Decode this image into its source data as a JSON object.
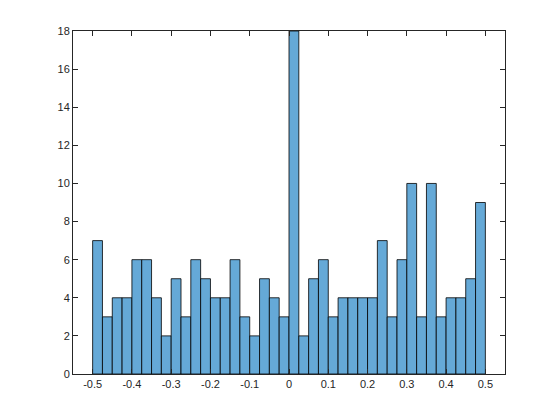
{
  "chart_data": {
    "type": "histogram",
    "bins": [
      -0.5,
      -0.475,
      -0.45,
      -0.425,
      -0.4,
      -0.375,
      -0.35,
      -0.325,
      -0.3,
      -0.275,
      -0.25,
      -0.225,
      -0.2,
      -0.175,
      -0.15,
      -0.125,
      -0.1,
      -0.075,
      -0.05,
      -0.025,
      0,
      0.025,
      0.05,
      0.075,
      0.1,
      0.125,
      0.15,
      0.175,
      0.2,
      0.225,
      0.25,
      0.275,
      0.3,
      0.325,
      0.35,
      0.375,
      0.4,
      0.425,
      0.45,
      0.475,
      0.5
    ],
    "values": [
      7,
      3,
      4,
      4,
      6,
      6,
      4,
      2,
      5,
      3,
      6,
      5,
      4,
      4,
      6,
      3,
      2,
      5,
      4,
      3,
      18,
      2,
      5,
      6,
      3,
      4,
      4,
      4,
      4,
      7,
      3,
      6,
      10,
      3,
      10,
      3,
      4,
      4,
      5,
      9
    ],
    "color": "#65a9d7",
    "xlim": [
      -0.55,
      0.55
    ],
    "xticks": [
      -0.5,
      -0.4,
      -0.3,
      -0.2,
      -0.1,
      0,
      0.1,
      0.2,
      0.3,
      0.4,
      0.5
    ],
    "ylim": [
      0,
      18
    ],
    "yticks": [
      0,
      2,
      4,
      6,
      8,
      10,
      12,
      14,
      16,
      18
    ],
    "grid": false
  }
}
